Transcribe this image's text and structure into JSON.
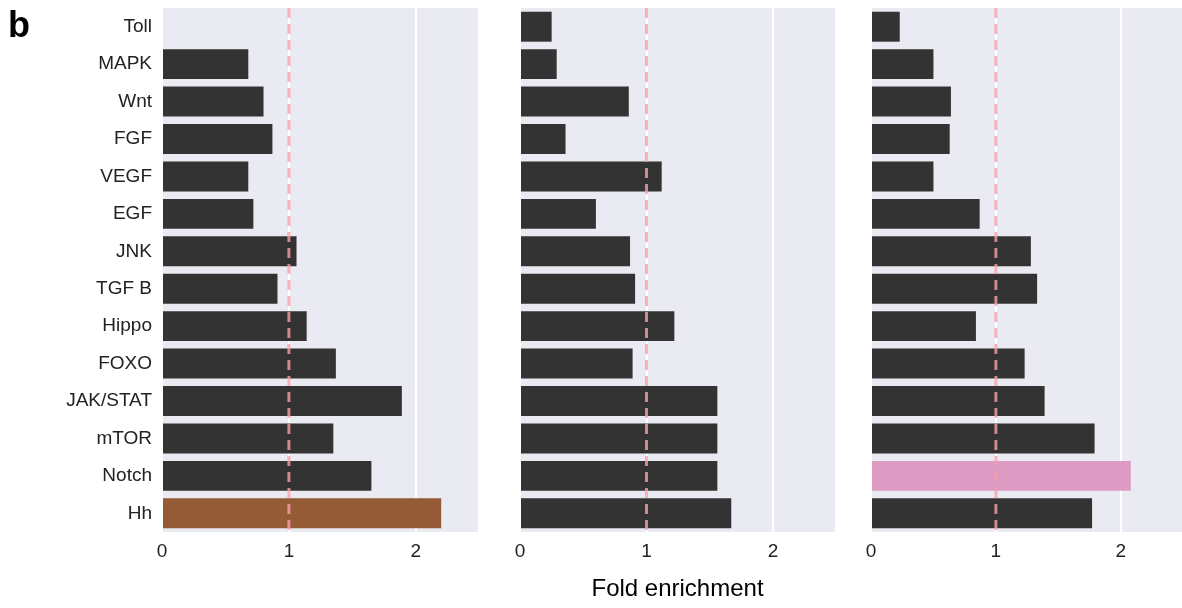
{
  "chart_data": [
    {
      "type": "bar",
      "orientation": "horizontal",
      "annotations": [
        "b"
      ],
      "categories": [
        "Toll",
        "MAPK",
        "Wnt",
        "FGF",
        "VEGF",
        "EGF",
        "JNK",
        "TGF B",
        "Hippo",
        "FOXO",
        "JAK/STAT",
        "mTOR",
        "Notch",
        "Hh"
      ],
      "values": [
        null,
        0.68,
        0.8,
        0.87,
        0.68,
        0.72,
        1.06,
        0.91,
        1.14,
        1.37,
        1.89,
        1.35,
        1.65,
        2.2
      ],
      "colors": [
        "#333333",
        "#333333",
        "#333333",
        "#333333",
        "#333333",
        "#333333",
        "#333333",
        "#333333",
        "#333333",
        "#333333",
        "#333333",
        "#333333",
        "#333333",
        "#955a36"
      ],
      "xlim": [
        0,
        2.49
      ],
      "xticks": [
        0,
        1,
        2
      ],
      "grid": "x",
      "ref_lines": [
        {
          "axis": "x",
          "value": 1,
          "color": "#f4a0a8",
          "line_style": "dashed"
        }
      ]
    },
    {
      "type": "bar",
      "orientation": "horizontal",
      "xlabel": "Fold enrichment",
      "categories": [
        null,
        null,
        null,
        null,
        null,
        null,
        null,
        null,
        null,
        null,
        null,
        null,
        null,
        null
      ],
      "values": [
        0.25,
        0.29,
        0.86,
        0.36,
        1.12,
        0.6,
        0.87,
        0.91,
        1.22,
        0.89,
        1.56,
        1.56,
        1.56,
        1.67
      ],
      "colors": [
        "#333333",
        "#333333",
        "#333333",
        "#333333",
        "#333333",
        "#333333",
        "#333333",
        "#333333",
        "#333333",
        "#333333",
        "#333333",
        "#333333",
        "#333333",
        "#333333"
      ],
      "xlim": [
        0,
        2.49
      ],
      "xticks": [
        0,
        1,
        2
      ],
      "grid": "x",
      "tick_labels": "x",
      "ref_lines": [
        {
          "axis": "x",
          "value": 1,
          "color": "#f4a0a8",
          "line_style": "dashed"
        }
      ]
    },
    {
      "type": "bar",
      "orientation": "horizontal",
      "categories": [
        null,
        null,
        null,
        null,
        null,
        null,
        null,
        null,
        null,
        null,
        null,
        null,
        null,
        null
      ],
      "values": [
        0.23,
        0.5,
        0.64,
        0.63,
        0.5,
        0.87,
        1.28,
        1.33,
        0.84,
        1.23,
        1.39,
        1.79,
        2.08,
        1.77
      ],
      "colors": [
        "#333333",
        "#333333",
        "#333333",
        "#333333",
        "#333333",
        "#333333",
        "#333333",
        "#333333",
        "#333333",
        "#333333",
        "#333333",
        "#333333",
        "#dd9ac2",
        "#333333"
      ],
      "xlim": [
        0,
        2.49
      ],
      "xticks": [
        0,
        1,
        2
      ],
      "grid": "x",
      "tick_labels": "x",
      "ref_lines": [
        {
          "axis": "x",
          "value": 1,
          "color": "#f4a0a8",
          "line_style": "dashed"
        }
      ]
    }
  ]
}
